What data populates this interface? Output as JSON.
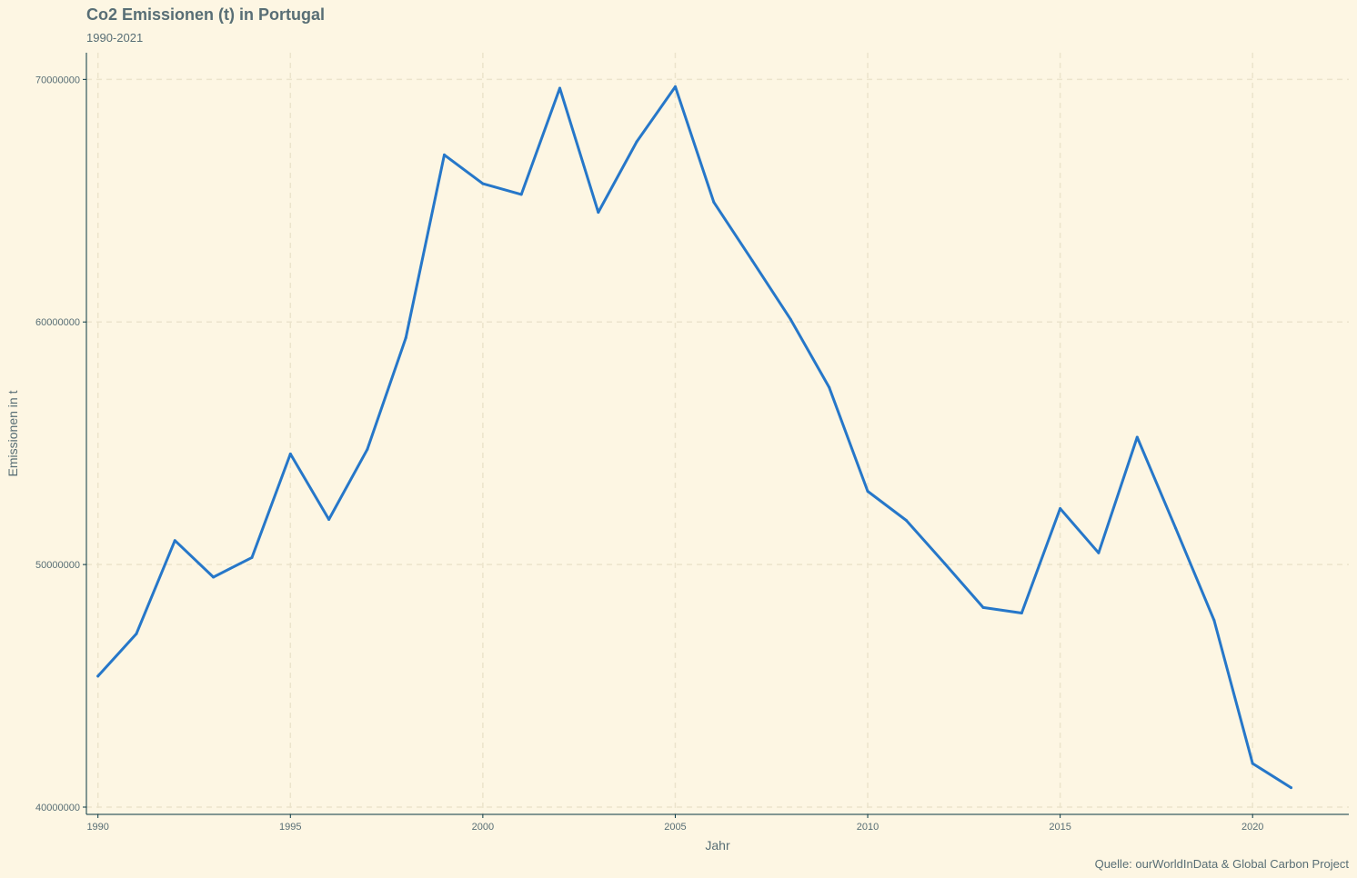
{
  "chart_data": {
    "type": "line",
    "title": "Co2 Emissionen (t) in Portugal",
    "subtitle": "1990-2021",
    "xlabel": "Jahr",
    "ylabel": "Emissionen in t",
    "caption": "Quelle: ourWorldInData & Global Carbon Project",
    "xlim": [
      1989.7,
      2022.5
    ],
    "ylim": [
      39700000,
      71100000
    ],
    "x_ticks": [
      1990,
      1995,
      2000,
      2005,
      2010,
      2015,
      2020
    ],
    "y_ticks": [
      40000000,
      50000000,
      60000000,
      70000000
    ],
    "x_tick_labels": [
      "1990",
      "1995",
      "2000",
      "2005",
      "2010",
      "2015",
      "2020"
    ],
    "y_tick_labels": [
      "40000000",
      "50000000",
      "60000000",
      "70000000"
    ],
    "grid": true,
    "colors": {
      "background": "#fdf6e3",
      "line": "#2677c9",
      "text": "#586e75",
      "axis": "#073642",
      "grid": "#ece4cc"
    },
    "series": [
      {
        "x": [
          1990,
          1991,
          1992,
          1993,
          1994,
          1995,
          1996,
          1997,
          1998,
          1999,
          2000,
          2001,
          2002,
          2003,
          2004,
          2005,
          2006,
          2007,
          2008,
          2009,
          2010,
          2011,
          2012,
          2013,
          2014,
          2015,
          2016,
          2017,
          2018,
          2019,
          2020,
          2021
        ],
        "values": [
          45400000,
          47150000,
          50990000,
          49480000,
          50290000,
          54560000,
          51860000,
          54750000,
          59340000,
          66890000,
          65700000,
          65260000,
          69640000,
          64520000,
          67430000,
          69700000,
          64940000,
          62530000,
          60100000,
          57300000,
          53020000,
          51820000,
          50040000,
          48230000,
          48000000,
          52310000,
          50480000,
          55250000,
          51500000,
          47700000,
          41800000,
          40800000
        ]
      }
    ]
  }
}
